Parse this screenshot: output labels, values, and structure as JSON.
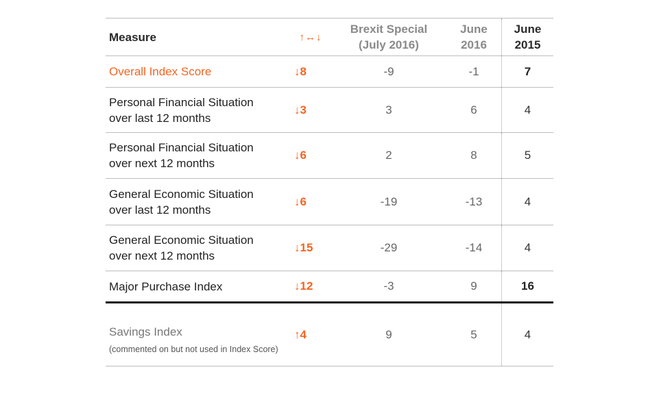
{
  "table": {
    "headers": {
      "measure": "Measure",
      "arrows": "↑↔↓",
      "brexit_line1": "Brexit Special",
      "brexit_line2": "(July 2016)",
      "jun2016_line1": "June",
      "jun2016_line2": "2016",
      "jun2015_line1": "June",
      "jun2015_line2": "2015"
    },
    "rows": [
      {
        "measure_line1": "Overall Index Score",
        "measure_line2": "",
        "change": "↓8",
        "brexit": "-9",
        "jun2016": "-1",
        "jun2015": "7"
      },
      {
        "measure_line1": "Personal Financial Situation",
        "measure_line2": "over last 12 months",
        "change": "↓3",
        "brexit": "3",
        "jun2016": "6",
        "jun2015": "4"
      },
      {
        "measure_line1": "Personal Financial Situation",
        "measure_line2": "over next 12 months",
        "change": "↓6",
        "brexit": "2",
        "jun2016": "8",
        "jun2015": "5"
      },
      {
        "measure_line1": "General Economic Situation",
        "measure_line2": "over last 12 months",
        "change": "↓6",
        "brexit": "-19",
        "jun2016": "-13",
        "jun2015": "4"
      },
      {
        "measure_line1": "General Economic Situation",
        "measure_line2": "over next 12 months",
        "change": "↓15",
        "brexit": "-29",
        "jun2016": "-14",
        "jun2015": "4"
      },
      {
        "measure_line1": "Major Purchase Index",
        "measure_line2": "",
        "change": "↓12",
        "brexit": "-3",
        "jun2016": "9",
        "jun2015": "16"
      },
      {
        "measure_line1": "Savings Index",
        "measure_line2": "(commented on but not used in Index Score)",
        "change": "↑4",
        "brexit": "9",
        "jun2016": "5",
        "jun2015": "4"
      }
    ]
  },
  "colors": {
    "accent": "#f26522",
    "rule": "#bdbdbd",
    "heavy_rule": "#111111"
  }
}
